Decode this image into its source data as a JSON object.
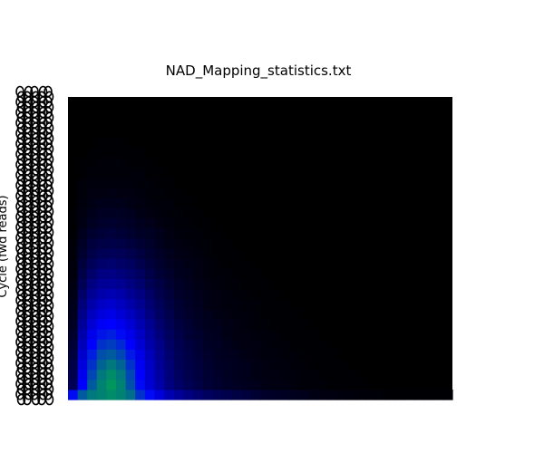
{
  "chart_data": {
    "type": "heatmap",
    "title": "NAD_Mapping_statistics.txt",
    "xlabel": "",
    "ylabel": "Cycle (fwd reads)",
    "colormap": [
      "#000000",
      "#0000ff",
      "#00ff00"
    ],
    "colormap_description": "black (low) to blue to green (high)",
    "grid": false,
    "legend": "none",
    "y_ticks_overplotted": true,
    "rows_bottom_to_top": [
      [
        0.62,
        0.78,
        0.84,
        0.86,
        0.88,
        0.86,
        0.82,
        0.7,
        0.62,
        0.52,
        0.42,
        0.36,
        0.3,
        0.26,
        0.22,
        0.2,
        0.18,
        0.16,
        0.14,
        0.12,
        0.1,
        0.09,
        0.08,
        0.07,
        0.06,
        0.05,
        0.04,
        0.04,
        0.03,
        0.03,
        0.02,
        0.02,
        0.02,
        0.01,
        0.01,
        0.01,
        0.01,
        0.01,
        0.01,
        0.01
      ],
      [
        0.2,
        0.6,
        0.78,
        0.86,
        0.9,
        0.86,
        0.76,
        0.62,
        0.5,
        0.4,
        0.3,
        0.24,
        0.2,
        0.16,
        0.13,
        0.11,
        0.09,
        0.08,
        0.07,
        0.06,
        0.05,
        0.04,
        0.04,
        0.03,
        0.02,
        0.02,
        0.02,
        0.01,
        0.01,
        0.01,
        0.01,
        0.0,
        0.0,
        0.0,
        0.0,
        0.0,
        0.0,
        0.0,
        0.0,
        0.0
      ],
      [
        0.18,
        0.56,
        0.74,
        0.84,
        0.88,
        0.84,
        0.74,
        0.6,
        0.48,
        0.38,
        0.29,
        0.22,
        0.18,
        0.15,
        0.12,
        0.1,
        0.08,
        0.07,
        0.06,
        0.05,
        0.04,
        0.04,
        0.03,
        0.03,
        0.02,
        0.02,
        0.01,
        0.01,
        0.01,
        0.01,
        0.0,
        0.0,
        0.0,
        0.0,
        0.0,
        0.0,
        0.0,
        0.0,
        0.0,
        0.0
      ],
      [
        0.16,
        0.52,
        0.7,
        0.8,
        0.84,
        0.8,
        0.7,
        0.57,
        0.46,
        0.36,
        0.28,
        0.21,
        0.17,
        0.14,
        0.11,
        0.09,
        0.08,
        0.07,
        0.06,
        0.05,
        0.04,
        0.03,
        0.03,
        0.02,
        0.02,
        0.01,
        0.01,
        0.01,
        0.01,
        0.0,
        0.0,
        0.0,
        0.0,
        0.0,
        0.0,
        0.0,
        0.0,
        0.0,
        0.0,
        0.0
      ],
      [
        0.14,
        0.48,
        0.66,
        0.76,
        0.78,
        0.74,
        0.65,
        0.54,
        0.44,
        0.34,
        0.26,
        0.2,
        0.16,
        0.13,
        0.1,
        0.08,
        0.07,
        0.06,
        0.05,
        0.04,
        0.03,
        0.03,
        0.02,
        0.02,
        0.01,
        0.01,
        0.01,
        0.01,
        0.0,
        0.0,
        0.0,
        0.0,
        0.0,
        0.0,
        0.0,
        0.0,
        0.0,
        0.0,
        0.0,
        0.0
      ],
      [
        0.12,
        0.44,
        0.6,
        0.7,
        0.72,
        0.68,
        0.6,
        0.5,
        0.4,
        0.32,
        0.24,
        0.19,
        0.15,
        0.12,
        0.09,
        0.08,
        0.06,
        0.05,
        0.04,
        0.04,
        0.03,
        0.02,
        0.02,
        0.01,
        0.01,
        0.01,
        0.01,
        0.0,
        0.0,
        0.0,
        0.0,
        0.0,
        0.0,
        0.0,
        0.0,
        0.0,
        0.0,
        0.0,
        0.0,
        0.0
      ],
      [
        0.1,
        0.4,
        0.55,
        0.64,
        0.66,
        0.62,
        0.55,
        0.46,
        0.37,
        0.29,
        0.22,
        0.17,
        0.13,
        0.11,
        0.08,
        0.07,
        0.05,
        0.04,
        0.04,
        0.03,
        0.02,
        0.02,
        0.01,
        0.01,
        0.01,
        0.01,
        0.0,
        0.0,
        0.0,
        0.0,
        0.0,
        0.0,
        0.0,
        0.0,
        0.0,
        0.0,
        0.0,
        0.0,
        0.0,
        0.0
      ],
      [
        0.08,
        0.36,
        0.5,
        0.58,
        0.6,
        0.56,
        0.5,
        0.42,
        0.34,
        0.26,
        0.2,
        0.15,
        0.12,
        0.09,
        0.07,
        0.06,
        0.05,
        0.04,
        0.03,
        0.02,
        0.02,
        0.01,
        0.01,
        0.01,
        0.01,
        0.0,
        0.0,
        0.0,
        0.0,
        0.0,
        0.0,
        0.0,
        0.0,
        0.0,
        0.0,
        0.0,
        0.0,
        0.0,
        0.0,
        0.0
      ],
      [
        0.07,
        0.32,
        0.45,
        0.52,
        0.54,
        0.5,
        0.45,
        0.38,
        0.3,
        0.23,
        0.18,
        0.13,
        0.1,
        0.08,
        0.06,
        0.05,
        0.04,
        0.03,
        0.03,
        0.02,
        0.01,
        0.01,
        0.01,
        0.01,
        0.0,
        0.0,
        0.0,
        0.0,
        0.0,
        0.0,
        0.0,
        0.0,
        0.0,
        0.0,
        0.0,
        0.0,
        0.0,
        0.0,
        0.0,
        0.0
      ],
      [
        0.06,
        0.28,
        0.4,
        0.46,
        0.48,
        0.45,
        0.4,
        0.34,
        0.27,
        0.21,
        0.16,
        0.12,
        0.09,
        0.07,
        0.05,
        0.04,
        0.03,
        0.03,
        0.02,
        0.02,
        0.01,
        0.01,
        0.01,
        0.0,
        0.0,
        0.0,
        0.0,
        0.0,
        0.0,
        0.0,
        0.0,
        0.0,
        0.0,
        0.0,
        0.0,
        0.0,
        0.0,
        0.0,
        0.0,
        0.0
      ],
      [
        0.05,
        0.24,
        0.35,
        0.4,
        0.42,
        0.4,
        0.35,
        0.3,
        0.24,
        0.18,
        0.14,
        0.1,
        0.08,
        0.06,
        0.05,
        0.04,
        0.03,
        0.02,
        0.02,
        0.01,
        0.01,
        0.01,
        0.0,
        0.0,
        0.0,
        0.0,
        0.0,
        0.0,
        0.0,
        0.0,
        0.0,
        0.0,
        0.0,
        0.0,
        0.0,
        0.0,
        0.0,
        0.0,
        0.0,
        0.0
      ],
      [
        0.04,
        0.2,
        0.3,
        0.35,
        0.36,
        0.34,
        0.3,
        0.26,
        0.2,
        0.16,
        0.12,
        0.09,
        0.07,
        0.05,
        0.04,
        0.03,
        0.02,
        0.02,
        0.01,
        0.01,
        0.01,
        0.0,
        0.0,
        0.0,
        0.0,
        0.0,
        0.0,
        0.0,
        0.0,
        0.0,
        0.0,
        0.0,
        0.0,
        0.0,
        0.0,
        0.0,
        0.0,
        0.0,
        0.0,
        0.0
      ],
      [
        0.03,
        0.17,
        0.25,
        0.3,
        0.31,
        0.29,
        0.26,
        0.22,
        0.17,
        0.13,
        0.1,
        0.07,
        0.06,
        0.04,
        0.03,
        0.02,
        0.02,
        0.01,
        0.01,
        0.01,
        0.0,
        0.0,
        0.0,
        0.0,
        0.0,
        0.0,
        0.0,
        0.0,
        0.0,
        0.0,
        0.0,
        0.0,
        0.0,
        0.0,
        0.0,
        0.0,
        0.0,
        0.0,
        0.0,
        0.0
      ],
      [
        0.03,
        0.14,
        0.21,
        0.25,
        0.26,
        0.24,
        0.22,
        0.18,
        0.14,
        0.11,
        0.08,
        0.06,
        0.05,
        0.04,
        0.03,
        0.02,
        0.01,
        0.01,
        0.01,
        0.0,
        0.0,
        0.0,
        0.0,
        0.0,
        0.0,
        0.0,
        0.0,
        0.0,
        0.0,
        0.0,
        0.0,
        0.0,
        0.0,
        0.0,
        0.0,
        0.0,
        0.0,
        0.0,
        0.0,
        0.0
      ],
      [
        0.02,
        0.11,
        0.17,
        0.2,
        0.21,
        0.2,
        0.18,
        0.15,
        0.12,
        0.09,
        0.07,
        0.05,
        0.04,
        0.03,
        0.02,
        0.01,
        0.01,
        0.01,
        0.0,
        0.0,
        0.0,
        0.0,
        0.0,
        0.0,
        0.0,
        0.0,
        0.0,
        0.0,
        0.0,
        0.0,
        0.0,
        0.0,
        0.0,
        0.0,
        0.0,
        0.0,
        0.0,
        0.0,
        0.0,
        0.0
      ],
      [
        0.02,
        0.09,
        0.14,
        0.16,
        0.17,
        0.16,
        0.14,
        0.12,
        0.1,
        0.07,
        0.05,
        0.04,
        0.03,
        0.02,
        0.02,
        0.01,
        0.01,
        0.0,
        0.0,
        0.0,
        0.0,
        0.0,
        0.0,
        0.0,
        0.0,
        0.0,
        0.0,
        0.0,
        0.0,
        0.0,
        0.0,
        0.0,
        0.0,
        0.0,
        0.0,
        0.0,
        0.0,
        0.0,
        0.0,
        0.0
      ],
      [
        0.01,
        0.07,
        0.11,
        0.13,
        0.14,
        0.13,
        0.11,
        0.09,
        0.08,
        0.06,
        0.04,
        0.03,
        0.02,
        0.02,
        0.01,
        0.01,
        0.0,
        0.0,
        0.0,
        0.0,
        0.0,
        0.0,
        0.0,
        0.0,
        0.0,
        0.0,
        0.0,
        0.0,
        0.0,
        0.0,
        0.0,
        0.0,
        0.0,
        0.0,
        0.0,
        0.0,
        0.0,
        0.0,
        0.0,
        0.0
      ],
      [
        0.01,
        0.05,
        0.08,
        0.1,
        0.11,
        0.1,
        0.09,
        0.07,
        0.06,
        0.04,
        0.03,
        0.02,
        0.02,
        0.01,
        0.01,
        0.0,
        0.0,
        0.0,
        0.0,
        0.0,
        0.0,
        0.0,
        0.0,
        0.0,
        0.0,
        0.0,
        0.0,
        0.0,
        0.0,
        0.0,
        0.0,
        0.0,
        0.0,
        0.0,
        0.0,
        0.0,
        0.0,
        0.0,
        0.0,
        0.0
      ],
      [
        0.01,
        0.04,
        0.06,
        0.08,
        0.08,
        0.08,
        0.07,
        0.05,
        0.04,
        0.03,
        0.02,
        0.02,
        0.01,
        0.01,
        0.0,
        0.0,
        0.0,
        0.0,
        0.0,
        0.0,
        0.0,
        0.0,
        0.0,
        0.0,
        0.0,
        0.0,
        0.0,
        0.0,
        0.0,
        0.0,
        0.0,
        0.0,
        0.0,
        0.0,
        0.0,
        0.0,
        0.0,
        0.0,
        0.0,
        0.0
      ],
      [
        0.0,
        0.03,
        0.05,
        0.06,
        0.06,
        0.06,
        0.05,
        0.04,
        0.03,
        0.02,
        0.02,
        0.01,
        0.01,
        0.0,
        0.0,
        0.0,
        0.0,
        0.0,
        0.0,
        0.0,
        0.0,
        0.0,
        0.0,
        0.0,
        0.0,
        0.0,
        0.0,
        0.0,
        0.0,
        0.0,
        0.0,
        0.0,
        0.0,
        0.0,
        0.0,
        0.0,
        0.0,
        0.0,
        0.0,
        0.0
      ],
      [
        0.0,
        0.02,
        0.04,
        0.04,
        0.05,
        0.04,
        0.04,
        0.03,
        0.02,
        0.02,
        0.01,
        0.01,
        0.0,
        0.0,
        0.0,
        0.0,
        0.0,
        0.0,
        0.0,
        0.0,
        0.0,
        0.0,
        0.0,
        0.0,
        0.0,
        0.0,
        0.0,
        0.0,
        0.0,
        0.0,
        0.0,
        0.0,
        0.0,
        0.0,
        0.0,
        0.0,
        0.0,
        0.0,
        0.0,
        0.0
      ],
      [
        0.0,
        0.02,
        0.03,
        0.03,
        0.03,
        0.03,
        0.03,
        0.02,
        0.02,
        0.01,
        0.01,
        0.0,
        0.0,
        0.0,
        0.0,
        0.0,
        0.0,
        0.0,
        0.0,
        0.0,
        0.0,
        0.0,
        0.0,
        0.0,
        0.0,
        0.0,
        0.0,
        0.0,
        0.0,
        0.0,
        0.0,
        0.0,
        0.0,
        0.0,
        0.0,
        0.0,
        0.0,
        0.0,
        0.0,
        0.0
      ],
      [
        0.0,
        0.01,
        0.02,
        0.02,
        0.02,
        0.02,
        0.02,
        0.02,
        0.01,
        0.01,
        0.0,
        0.0,
        0.0,
        0.0,
        0.0,
        0.0,
        0.0,
        0.0,
        0.0,
        0.0,
        0.0,
        0.0,
        0.0,
        0.0,
        0.0,
        0.0,
        0.0,
        0.0,
        0.0,
        0.0,
        0.0,
        0.0,
        0.0,
        0.0,
        0.0,
        0.0,
        0.0,
        0.0,
        0.0,
        0.0
      ],
      [
        0.0,
        0.01,
        0.01,
        0.02,
        0.02,
        0.02,
        0.01,
        0.01,
        0.01,
        0.0,
        0.0,
        0.0,
        0.0,
        0.0,
        0.0,
        0.0,
        0.0,
        0.0,
        0.0,
        0.0,
        0.0,
        0.0,
        0.0,
        0.0,
        0.0,
        0.0,
        0.0,
        0.0,
        0.0,
        0.0,
        0.0,
        0.0,
        0.0,
        0.0,
        0.0,
        0.0,
        0.0,
        0.0,
        0.0,
        0.0
      ],
      [
        0.0,
        0.0,
        0.01,
        0.01,
        0.01,
        0.01,
        0.01,
        0.01,
        0.0,
        0.0,
        0.0,
        0.0,
        0.0,
        0.0,
        0.0,
        0.0,
        0.0,
        0.0,
        0.0,
        0.0,
        0.0,
        0.0,
        0.0,
        0.0,
        0.0,
        0.0,
        0.0,
        0.0,
        0.0,
        0.0,
        0.0,
        0.0,
        0.0,
        0.0,
        0.0,
        0.0,
        0.0,
        0.0,
        0.0,
        0.0
      ],
      [
        0.0,
        0.0,
        0.0,
        0.01,
        0.01,
        0.01,
        0.0,
        0.0,
        0.0,
        0.0,
        0.0,
        0.0,
        0.0,
        0.0,
        0.0,
        0.0,
        0.0,
        0.0,
        0.0,
        0.0,
        0.0,
        0.0,
        0.0,
        0.0,
        0.0,
        0.0,
        0.0,
        0.0,
        0.0,
        0.0,
        0.0,
        0.0,
        0.0,
        0.0,
        0.0,
        0.0,
        0.0,
        0.0,
        0.0,
        0.0
      ],
      [
        0.0,
        0.0,
        0.0,
        0.0,
        0.0,
        0.0,
        0.0,
        0.0,
        0.0,
        0.0,
        0.0,
        0.0,
        0.0,
        0.0,
        0.0,
        0.0,
        0.0,
        0.0,
        0.0,
        0.0,
        0.0,
        0.0,
        0.0,
        0.0,
        0.0,
        0.0,
        0.0,
        0.0,
        0.0,
        0.0,
        0.0,
        0.0,
        0.0,
        0.0,
        0.0,
        0.0,
        0.0,
        0.0,
        0.0,
        0.0
      ],
      [
        0.0,
        0.0,
        0.0,
        0.0,
        0.0,
        0.0,
        0.0,
        0.0,
        0.0,
        0.0,
        0.0,
        0.0,
        0.0,
        0.0,
        0.0,
        0.0,
        0.0,
        0.0,
        0.0,
        0.0,
        0.0,
        0.0,
        0.0,
        0.0,
        0.0,
        0.0,
        0.0,
        0.0,
        0.0,
        0.0,
        0.0,
        0.0,
        0.0,
        0.0,
        0.0,
        0.0,
        0.0,
        0.0,
        0.0,
        0.0
      ],
      [
        0.0,
        0.0,
        0.0,
        0.0,
        0.0,
        0.0,
        0.0,
        0.0,
        0.0,
        0.0,
        0.0,
        0.0,
        0.0,
        0.0,
        0.0,
        0.0,
        0.0,
        0.0,
        0.0,
        0.0,
        0.0,
        0.0,
        0.0,
        0.0,
        0.0,
        0.0,
        0.0,
        0.0,
        0.0,
        0.0,
        0.0,
        0.0,
        0.0,
        0.0,
        0.0,
        0.0,
        0.0,
        0.0,
        0.0,
        0.0
      ],
      [
        0.0,
        0.0,
        0.0,
        0.0,
        0.0,
        0.0,
        0.0,
        0.0,
        0.0,
        0.0,
        0.0,
        0.0,
        0.0,
        0.0,
        0.0,
        0.0,
        0.0,
        0.0,
        0.0,
        0.0,
        0.0,
        0.0,
        0.0,
        0.0,
        0.0,
        0.0,
        0.0,
        0.0,
        0.0,
        0.0,
        0.0,
        0.0,
        0.0,
        0.0,
        0.0,
        0.0,
        0.0,
        0.0,
        0.0,
        0.0
      ]
    ]
  }
}
